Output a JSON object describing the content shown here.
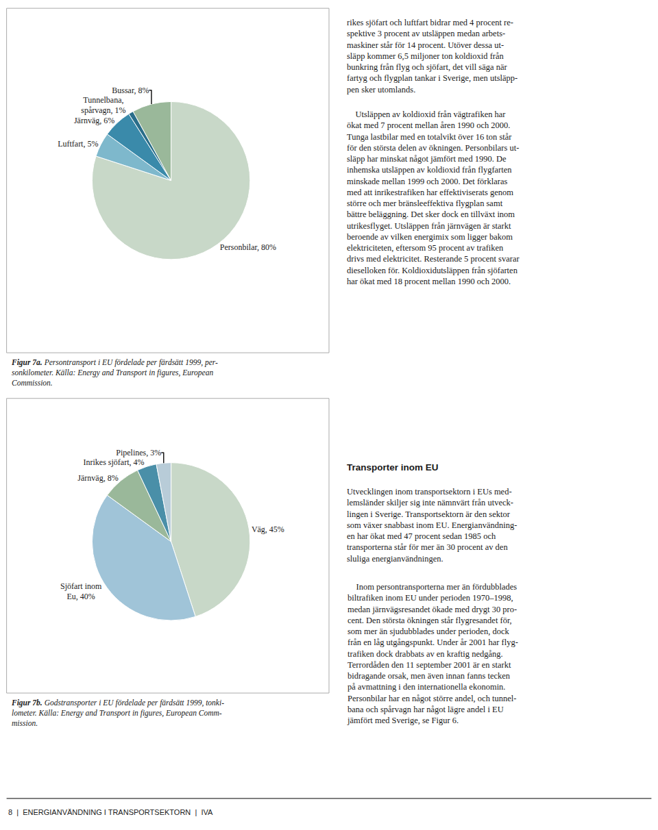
{
  "chart_data": [
    {
      "type": "pie",
      "title": "Figur 7a.",
      "subtitle": "Persontransport i EU fördelade per färdsätt 1999, per-\nsonkilometer. Källa: Energy and Transport in figures, European\nCommission.",
      "categories": [
        "Personbilar, 80%",
        "Luftfart, 5%",
        "Järnväg, 6%",
        "Tunnelbana,\nspårvagn, 1%",
        "Bussar, 8%"
      ],
      "values": [
        80,
        5,
        6,
        1,
        8
      ],
      "colors": [
        "#c8d8c8",
        "#7eb8cc",
        "#3a8aaa",
        "#2a6e8a",
        "#9ab89a"
      ],
      "data_labels": true,
      "annotations": [
        "rikes sjöfart och luftfart bidrar med 4 procent re-\nspektive 3 procent av utsläppen medan arbets-\nmaskiner står för 14 procent. Utöver dessa ut-\nsläpp kommer 6,5 miljoner ton koldioxid från\nbunkring från flyg och sjöfart, det vill säga när\nfartyg och flygplan tankar i Sverige, men utsläpp-\npen sker utomlands.",
        "    Utsläppen av koldioxid från vägtrafiken har\nökat med 7 procent mellan åren 1990 och 2000.\nTunga lastbilar med en totalvikt över 16 ton står\nför den största delen av ökningen. Personbilars ut-\nsläpp har minskat något jämfört med 1990. De\ninhemska utsläppen av koldioxid från flygfarten\nminskade mellan 1999 och 2000. Det förklaras\nmed att inrikestrafiken har effektiviserats genom\nstörre och mer bränsleeffektiva flygplan samt\nbättre beläggning. Det sker dock en tillväxt inom\nutrikesflyget. Utsläppen från järnvägen är starkt\nberoende av vilken energimix som ligger bakom\nelektriciteten, eftersom 95 procent av trafiken\ndrivs med elektricitet. Resterande 5 procent svarar\ndieselloken för. Koldioxidutsläppen från sjöfarten\nhar ökat med 18 procent mellan 1990 och 2000."
      ]
    },
    {
      "type": "pie",
      "title": "Figur 7b.",
      "subtitle": "Godstransporter i EU fördelade per färdsätt 1999, tonki-\nlometer. Källa: Energy and Transport in figures, European Comm-\nmission.",
      "categories": [
        "Väg, 45%",
        "Sjöfart inom\nEu, 40%",
        "Järnväg, 8%",
        "Inrikes sjöfart, 4%",
        "Pipelines, 3%"
      ],
      "values": [
        45,
        40,
        8,
        4,
        3
      ],
      "colors": [
        "#c8d8c8",
        "#a0c4d8",
        "#9ab89a",
        "#4a8fa8",
        "#b8ccd8"
      ],
      "data_labels": true,
      "annotations": [
        "Transporter inom EU",
        "Utvecklingen inom transportsektorn i EUs med-\nlemsländer skiljer sig inte nämnvärt från utveck-\nlingen i Sverige. Transportsektorn är den sektor\nsom växer snabbast inom EU. Energianvändning-\nen har ökat med 47 procent sedan 1985 och\ntransporterna står för mer än 30 procent av den\nsluliga energianvändningen.",
        "    Inom persontransporterna mer än fördubblades\nbiltrafiken inom EU under perioden 1970–1998,\nmedan järnvägsresandet ökade med drygt 30 pro-\ncent. Den största ökningen står flygresandet för,\nsom mer än sjudubblades under perioden, dock\nfrån en låg utgångspunkt. Under år 2001 har flyg-\ntrafiken dock drabbats av en kraftig nedgång.\nTerrordåden den 11 september 2001 är en starkt\nbidragande orsak, men även innan fanns tecken\npå avmattning i den internationella ekonomin.\nPersonbilar har en något större andel, och tunnel-\nbana och spårvagn har något lägre andel i EU\njämfört med Sverige, se Figur 6.",
        "8  |  ENERGIANVÄNDNING I TRANSPORTSEKTORN  |  IVA"
      ]
    }
  ]
}
